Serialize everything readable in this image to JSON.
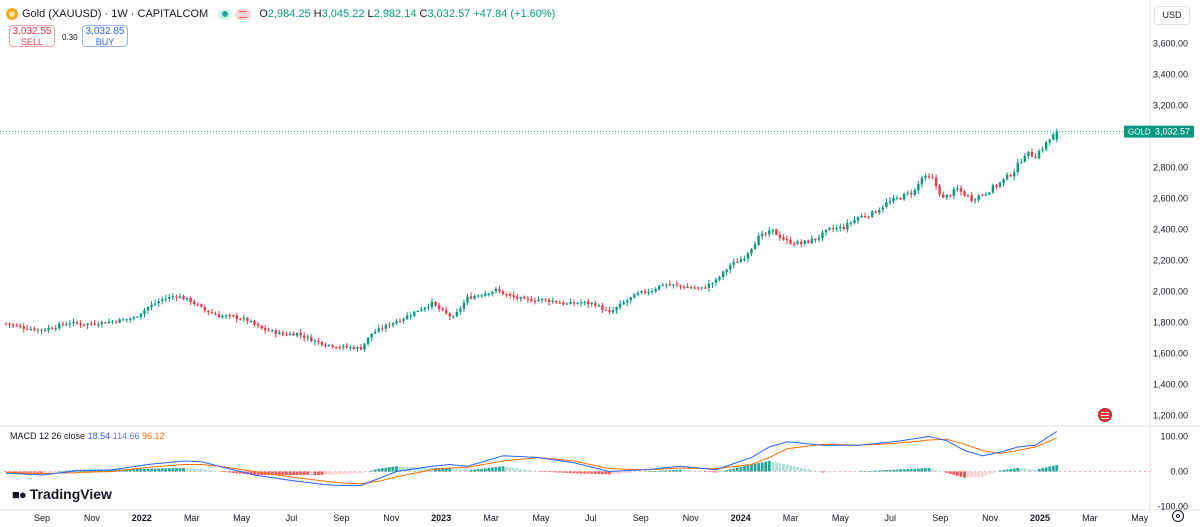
{
  "header": {
    "title": "Gold (XAUUSD) · 1W · CAPITALCOM",
    "o_label": "O",
    "o": "2,984.25",
    "h_label": "H",
    "h": "3,045.22",
    "l_label": "L",
    "l": "2,982.14",
    "c_label": "C",
    "c": "3,032.57",
    "change": "+47.84 (+1.60%)"
  },
  "trade": {
    "sell_price": "3,032.55",
    "sell_label": "SELL",
    "spread": "0.30",
    "buy_price": "3,032.85",
    "buy_label": "BUY"
  },
  "currency": "USD",
  "price_tag": {
    "label": "GOLD",
    "value": "3,032.57"
  },
  "macd": {
    "label": "MACD 12 26 close",
    "hist": "18.54",
    "macd": "114.66",
    "signal": "96.12"
  },
  "branding": "TradingView",
  "colors": {
    "up": "#089981",
    "down": "#f23645",
    "macd": "#2962ff",
    "signal": "#ff6d00"
  },
  "chart_data": [
    {
      "type": "candlestick",
      "interval": "1W",
      "ylim": [
        1140,
        3740
      ],
      "y_ticks": [
        "3,600.00",
        "3,400.00",
        "3,200.00",
        "2,800.00",
        "2,600.00",
        "2,400.00",
        "2,200.00",
        "2,000.00",
        "1,800.00",
        "1,600.00",
        "1,400.00",
        "1,200.00"
      ],
      "x_ticks": [
        "Sep",
        "Nov",
        "2022",
        "Mar",
        "May",
        "Jul",
        "Sep",
        "Nov",
        "2023",
        "Mar",
        "May",
        "Jul",
        "Sep",
        "Nov",
        "2024",
        "Mar",
        "May",
        "Jul",
        "Sep",
        "Nov",
        "2025",
        "Mar",
        "May"
      ],
      "last_price": 3032.57,
      "anchors": [
        [
          0,
          1795
        ],
        [
          5,
          1768
        ],
        [
          10,
          1752
        ],
        [
          18,
          1800
        ],
        [
          22,
          1790
        ],
        [
          30,
          1808
        ],
        [
          36,
          1830
        ],
        [
          40,
          1900
        ],
        [
          44,
          1950
        ],
        [
          48,
          1975
        ],
        [
          52,
          1940
        ],
        [
          56,
          1880
        ],
        [
          60,
          1845
        ],
        [
          64,
          1838
        ],
        [
          68,
          1815
        ],
        [
          72,
          1760
        ],
        [
          78,
          1725
        ],
        [
          82,
          1730
        ],
        [
          86,
          1690
        ],
        [
          90,
          1660
        ],
        [
          94,
          1645
        ],
        [
          97,
          1640
        ],
        [
          100,
          1635
        ],
        [
          103,
          1730
        ],
        [
          108,
          1790
        ],
        [
          112,
          1830
        ],
        [
          116,
          1880
        ],
        [
          120,
          1925
        ],
        [
          123,
          1870
        ],
        [
          126,
          1830
        ],
        [
          130,
          1960
        ],
        [
          134,
          1985
        ],
        [
          138,
          2010
        ],
        [
          142,
          1970
        ],
        [
          146,
          1945
        ],
        [
          150,
          1950
        ],
        [
          154,
          1940
        ],
        [
          158,
          1920
        ],
        [
          162,
          1930
        ],
        [
          166,
          1920
        ],
        [
          170,
          1860
        ],
        [
          174,
          1930
        ],
        [
          178,
          1985
        ],
        [
          182,
          2010
        ],
        [
          185,
          2050
        ],
        [
          188,
          2040
        ],
        [
          192,
          2030
        ],
        [
          196,
          2020
        ],
        [
          200,
          2070
        ],
        [
          204,
          2170
        ],
        [
          208,
          2225
        ],
        [
          212,
          2350
        ],
        [
          216,
          2390
        ],
        [
          220,
          2325
        ],
        [
          224,
          2310
        ],
        [
          228,
          2340
        ],
        [
          232,
          2400
        ],
        [
          236,
          2415
        ],
        [
          240,
          2480
        ],
        [
          244,
          2505
        ],
        [
          248,
          2570
        ],
        [
          252,
          2610
        ],
        [
          256,
          2650
        ],
        [
          258,
          2735
        ],
        [
          261,
          2725
        ],
        [
          264,
          2600
        ],
        [
          268,
          2660
        ],
        [
          272,
          2600
        ],
        [
          276,
          2640
        ],
        [
          280,
          2700
        ],
        [
          284,
          2780
        ],
        [
          287,
          2890
        ],
        [
          290,
          2880
        ],
        [
          292,
          2930
        ],
        [
          296,
          3033
        ]
      ]
    },
    {
      "type": "macd",
      "ylim": [
        -110,
        130
      ],
      "y_ticks": [
        "100.00",
        "0.00",
        "-100.00"
      ],
      "macd_anchors": [
        [
          0,
          -5
        ],
        [
          10,
          -10
        ],
        [
          20,
          2
        ],
        [
          30,
          5
        ],
        [
          40,
          20
        ],
        [
          50,
          30
        ],
        [
          55,
          28
        ],
        [
          60,
          15
        ],
        [
          70,
          -10
        ],
        [
          80,
          -25
        ],
        [
          90,
          -38
        ],
        [
          95,
          -40
        ],
        [
          100,
          -40
        ],
        [
          105,
          -20
        ],
        [
          110,
          0
        ],
        [
          120,
          15
        ],
        [
          125,
          20
        ],
        [
          130,
          15
        ],
        [
          140,
          45
        ],
        [
          150,
          40
        ],
        [
          160,
          25
        ],
        [
          170,
          0
        ],
        [
          180,
          5
        ],
        [
          190,
          15
        ],
        [
          200,
          5
        ],
        [
          210,
          40
        ],
        [
          215,
          70
        ],
        [
          220,
          85
        ],
        [
          230,
          75
        ],
        [
          240,
          75
        ],
        [
          250,
          85
        ],
        [
          260,
          100
        ],
        [
          265,
          88
        ],
        [
          270,
          60
        ],
        [
          275,
          45
        ],
        [
          280,
          55
        ],
        [
          285,
          70
        ],
        [
          290,
          75
        ],
        [
          296,
          114.66
        ]
      ],
      "signal_anchors": [
        [
          0,
          -3
        ],
        [
          10,
          -6
        ],
        [
          20,
          -3
        ],
        [
          30,
          0
        ],
        [
          40,
          12
        ],
        [
          50,
          20
        ],
        [
          55,
          20
        ],
        [
          60,
          15
        ],
        [
          70,
          0
        ],
        [
          80,
          -15
        ],
        [
          90,
          -28
        ],
        [
          95,
          -33
        ],
        [
          100,
          -35
        ],
        [
          105,
          -28
        ],
        [
          110,
          -15
        ],
        [
          120,
          5
        ],
        [
          125,
          10
        ],
        [
          130,
          12
        ],
        [
          140,
          30
        ],
        [
          150,
          40
        ],
        [
          160,
          30
        ],
        [
          170,
          8
        ],
        [
          180,
          5
        ],
        [
          190,
          10
        ],
        [
          200,
          8
        ],
        [
          210,
          20
        ],
        [
          215,
          40
        ],
        [
          220,
          65
        ],
        [
          230,
          78
        ],
        [
          240,
          75
        ],
        [
          250,
          80
        ],
        [
          260,
          90
        ],
        [
          265,
          92
        ],
        [
          270,
          78
        ],
        [
          275,
          60
        ],
        [
          280,
          52
        ],
        [
          285,
          60
        ],
        [
          290,
          70
        ],
        [
          296,
          96.12
        ]
      ]
    }
  ]
}
